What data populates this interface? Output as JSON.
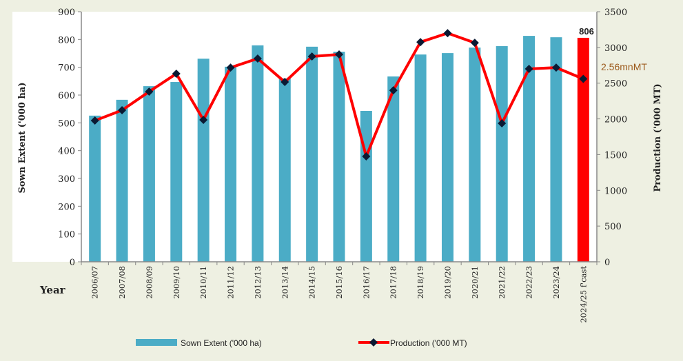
{
  "chart_data": {
    "type": "bar+line",
    "title": "",
    "xlabel": "Year",
    "ylabel_left": "Sown Extent  ('000 ha)",
    "ylabel_right": "Production  ('000 MT)",
    "ylim_left": [
      0,
      900
    ],
    "ylim_right": [
      0,
      3500
    ],
    "yticks_left": [
      0,
      100,
      200,
      300,
      400,
      500,
      600,
      700,
      800,
      900
    ],
    "yticks_right": [
      0,
      500,
      1000,
      1500,
      2000,
      2500,
      3000,
      3500
    ],
    "categories": [
      "2006/07",
      "2007/08",
      "2008/09",
      "2009/10",
      "2010/11",
      "2011/12",
      "2012/13",
      "2013/14",
      "2014/15",
      "2015/16",
      "2016/17",
      "2017/18",
      "2018/19",
      "2019/20",
      "2020/21",
      "2021/22",
      "2022/23",
      "2023/24",
      "2024/25 f'cast"
    ],
    "series": [
      {
        "name": "Sown Extent ('000 ha)",
        "type": "bar",
        "axis": "left",
        "color": "#4bacc6",
        "highlight_color": "#ff0000",
        "values": [
          526,
          583,
          632,
          647,
          731,
          702,
          779,
          660,
          774,
          756,
          543,
          667,
          746,
          751,
          771,
          776,
          813,
          808,
          806
        ]
      },
      {
        "name": "Production ('000 MT)",
        "type": "line",
        "axis": "right",
        "color": "#ff0000",
        "marker_color": "#0a1a33",
        "values": [
          1976,
          2121,
          2381,
          2632,
          1986,
          2718,
          2844,
          2516,
          2873,
          2902,
          1475,
          2400,
          3075,
          3200,
          3065,
          1938,
          2700,
          2718,
          2560
        ]
      }
    ],
    "annotations": {
      "bar_label": "806",
      "production_label": "2.56mnMT"
    },
    "legend": {
      "position": "bottom",
      "entries": [
        "Sown Extent ('000 ha)",
        "Production ('000 MT)"
      ]
    },
    "grid": false
  }
}
